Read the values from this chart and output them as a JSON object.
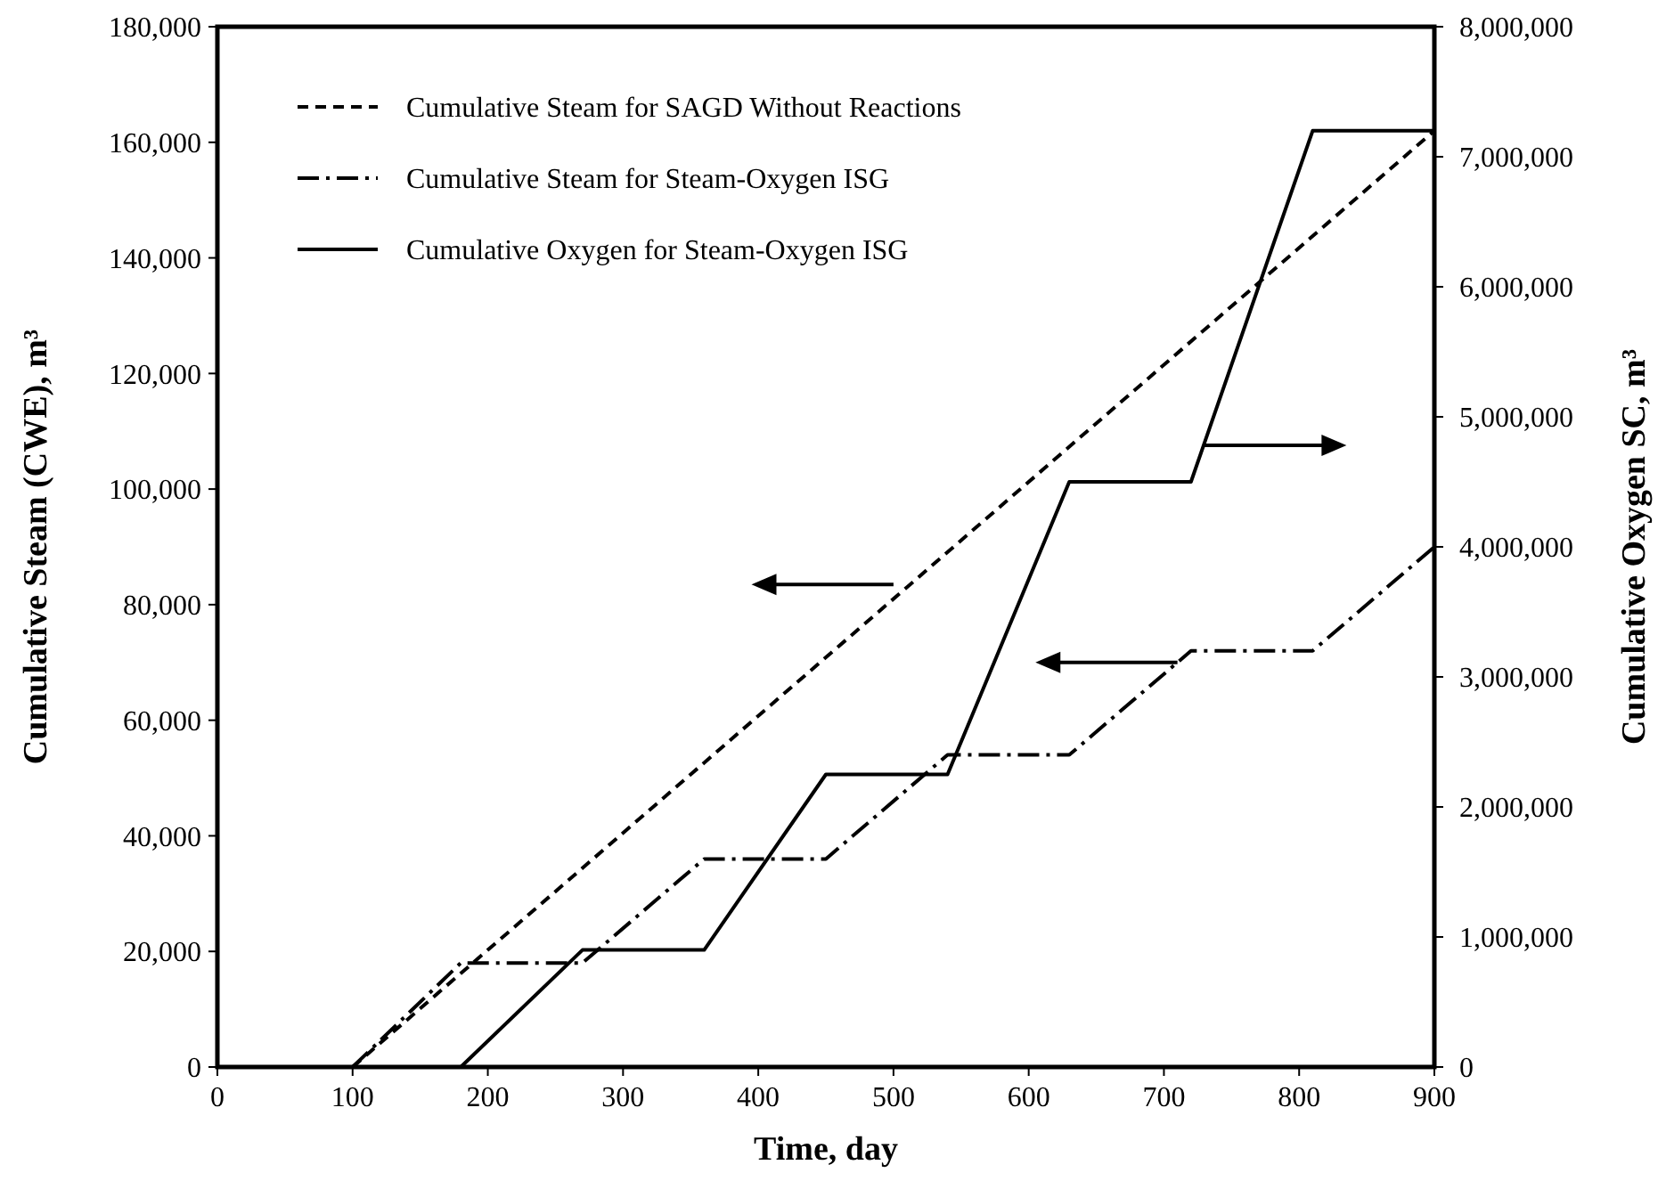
{
  "chart_data": {
    "type": "line",
    "xlabel": "Time, day",
    "ylabel": "Cumulative Steam (CWE), m³",
    "y2label": "Cumulative Oxygen SC, m³",
    "xlim": [
      0,
      900
    ],
    "xticks": [
      0,
      100,
      200,
      300,
      400,
      500,
      600,
      700,
      800,
      900
    ],
    "ylim": [
      0,
      180000
    ],
    "yticks": [
      {
        "value": 0,
        "label": "0"
      },
      {
        "value": 20000,
        "label": "20,000"
      },
      {
        "value": 40000,
        "label": "40,000"
      },
      {
        "value": 60000,
        "label": "60,000"
      },
      {
        "value": 80000,
        "label": "80,000"
      },
      {
        "value": 100000,
        "label": "100,000"
      },
      {
        "value": 120000,
        "label": "120,000"
      },
      {
        "value": 140000,
        "label": "140,000"
      },
      {
        "value": 160000,
        "label": "160,000"
      },
      {
        "value": 180000,
        "label": "180,000"
      }
    ],
    "y2lim": [
      0,
      8000000
    ],
    "y2ticks": [
      {
        "value": 0,
        "label": "0"
      },
      {
        "value": 1000000,
        "label": "1,000,000"
      },
      {
        "value": 2000000,
        "label": "2,000,000"
      },
      {
        "value": 3000000,
        "label": "3,000,000"
      },
      {
        "value": 4000000,
        "label": "4,000,000"
      },
      {
        "value": 5000000,
        "label": "5,000,000"
      },
      {
        "value": 6000000,
        "label": "6,000,000"
      },
      {
        "value": 7000000,
        "label": "7,000,000"
      },
      {
        "value": 8000000,
        "label": "8,000,000"
      }
    ],
    "grid": false,
    "legend": "top left",
    "marker": "none",
    "series": [
      {
        "name": "Cumulative Steam for SAGD Without Reactions",
        "color": "#000000",
        "line_style": "dashed",
        "x": [
          100,
          900
        ],
        "values": [
          0,
          162000
        ]
      },
      {
        "name": "Cumulative Steam for Steam-Oxygen ISG",
        "color": "#000000",
        "line_style": "dashdot",
        "x": [
          100,
          180,
          270,
          360,
          450,
          540,
          630,
          720,
          810,
          900
        ],
        "values": [
          0,
          18000,
          18000,
          36000,
          36000,
          54000,
          54000,
          72000,
          72000,
          90000
        ]
      },
      {
        "name": "Cumulative Oxygen for Steam-Oxygen ISG",
        "color": "#000000",
        "line_style": "solid",
        "axis": "y2",
        "x": [
          180,
          270,
          360,
          450,
          540,
          630,
          720,
          810,
          900
        ],
        "values": [
          0,
          900000,
          900000,
          2250000,
          2250000,
          4500000,
          4500000,
          7200000,
          7200000
        ]
      }
    ]
  }
}
